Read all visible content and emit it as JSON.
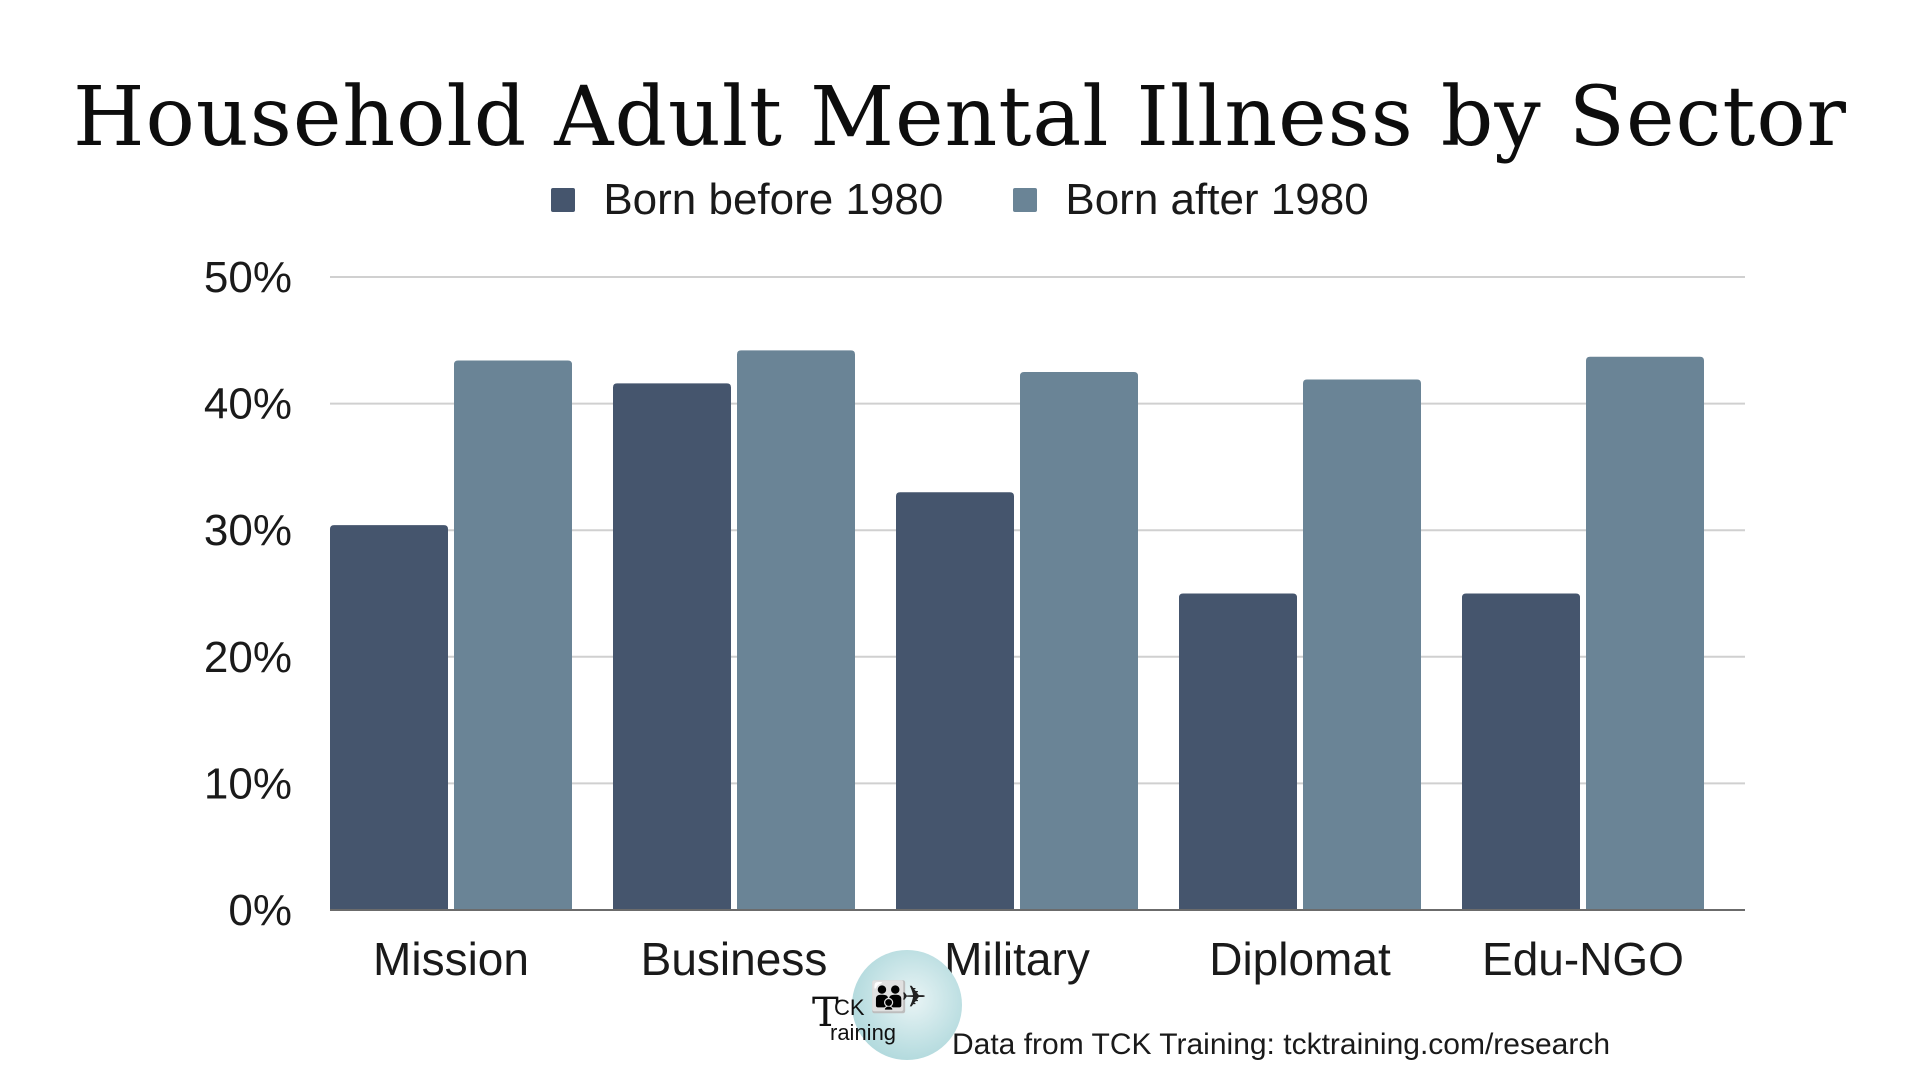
{
  "chart_data": {
    "type": "bar",
    "title": "Household Adult Mental Illness by Sector",
    "categories": [
      "Mission",
      "Business",
      "Military",
      "Diplomat",
      "Edu-NGO"
    ],
    "series": [
      {
        "name": "Born before 1980",
        "values": [
          30.4,
          41.6,
          33.0,
          25.0,
          25.0
        ],
        "color": "#45556d"
      },
      {
        "name": "Born after 1980",
        "values": [
          43.4,
          44.2,
          42.5,
          41.9,
          43.7
        ],
        "color": "#6a8496"
      }
    ],
    "ylim": [
      0,
      50
    ],
    "yticks": [
      0,
      10,
      20,
      30,
      40,
      50
    ],
    "ytick_labels": [
      "0%",
      "10%",
      "20%",
      "30%",
      "40%",
      "50%"
    ],
    "xlabel": "",
    "ylabel": "",
    "grid": true,
    "legend_position": "top-center",
    "gridline_color": "#d0d0d0",
    "baseline_color": "#6b6b6b"
  },
  "logo": {
    "brand_t": "T",
    "brand_ck": "CK",
    "brand_training": "raining",
    "figures_icon": "family-travel-icon"
  },
  "source_note": "Data from TCK Training: tcktraining.com/research"
}
